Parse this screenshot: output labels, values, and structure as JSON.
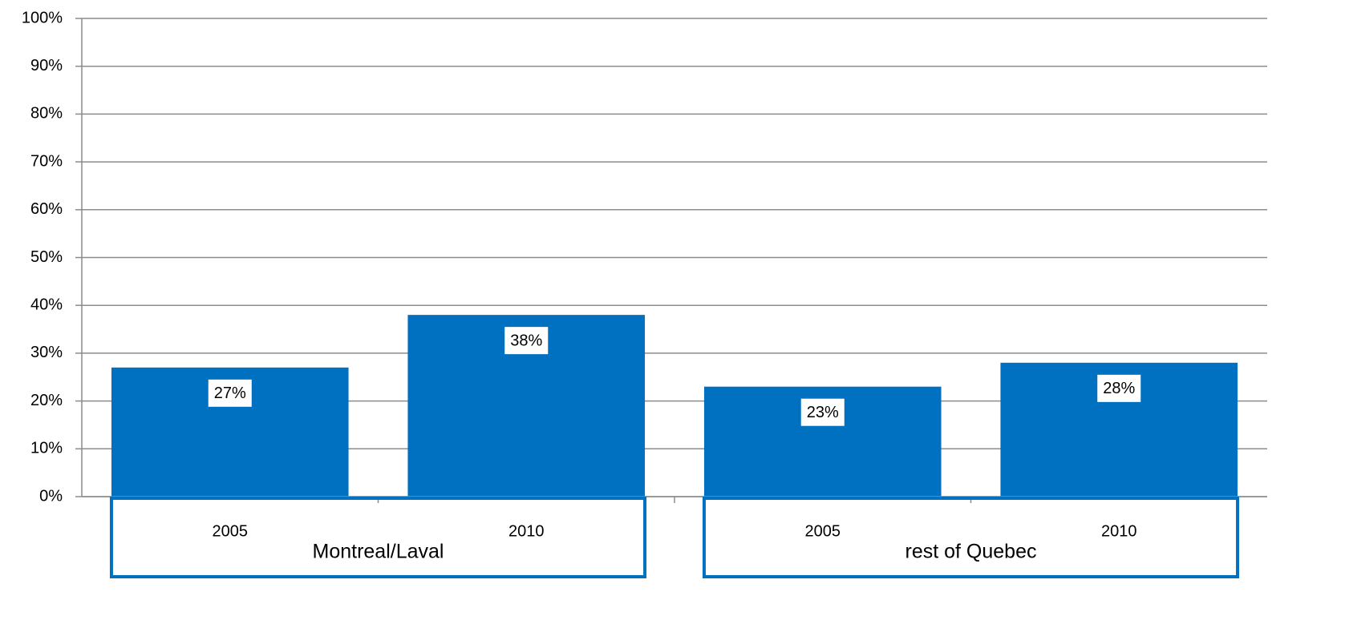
{
  "chart_data": {
    "type": "bar",
    "categories": [
      "2005",
      "2010",
      "2005",
      "2010"
    ],
    "groups": [
      "Montreal/Laval",
      "rest of Quebec"
    ],
    "values": [
      27,
      38,
      23,
      28
    ],
    "value_labels": [
      "27%",
      "38%",
      "23%",
      "28%"
    ],
    "color": "#0070c0",
    "ylim": [
      0,
      100
    ],
    "yticks": [
      {
        "value": 0,
        "label": "0%"
      },
      {
        "value": 10,
        "label": "10%"
      },
      {
        "value": 20,
        "label": "20%"
      },
      {
        "value": 30,
        "label": "30%"
      },
      {
        "value": 40,
        "label": "40%"
      },
      {
        "value": 50,
        "label": "50%"
      },
      {
        "value": 60,
        "label": "60%"
      },
      {
        "value": 70,
        "label": "70%"
      },
      {
        "value": 80,
        "label": "80%"
      },
      {
        "value": 90,
        "label": "90%"
      },
      {
        "value": 100,
        "label": "100%"
      }
    ],
    "grid": true
  }
}
